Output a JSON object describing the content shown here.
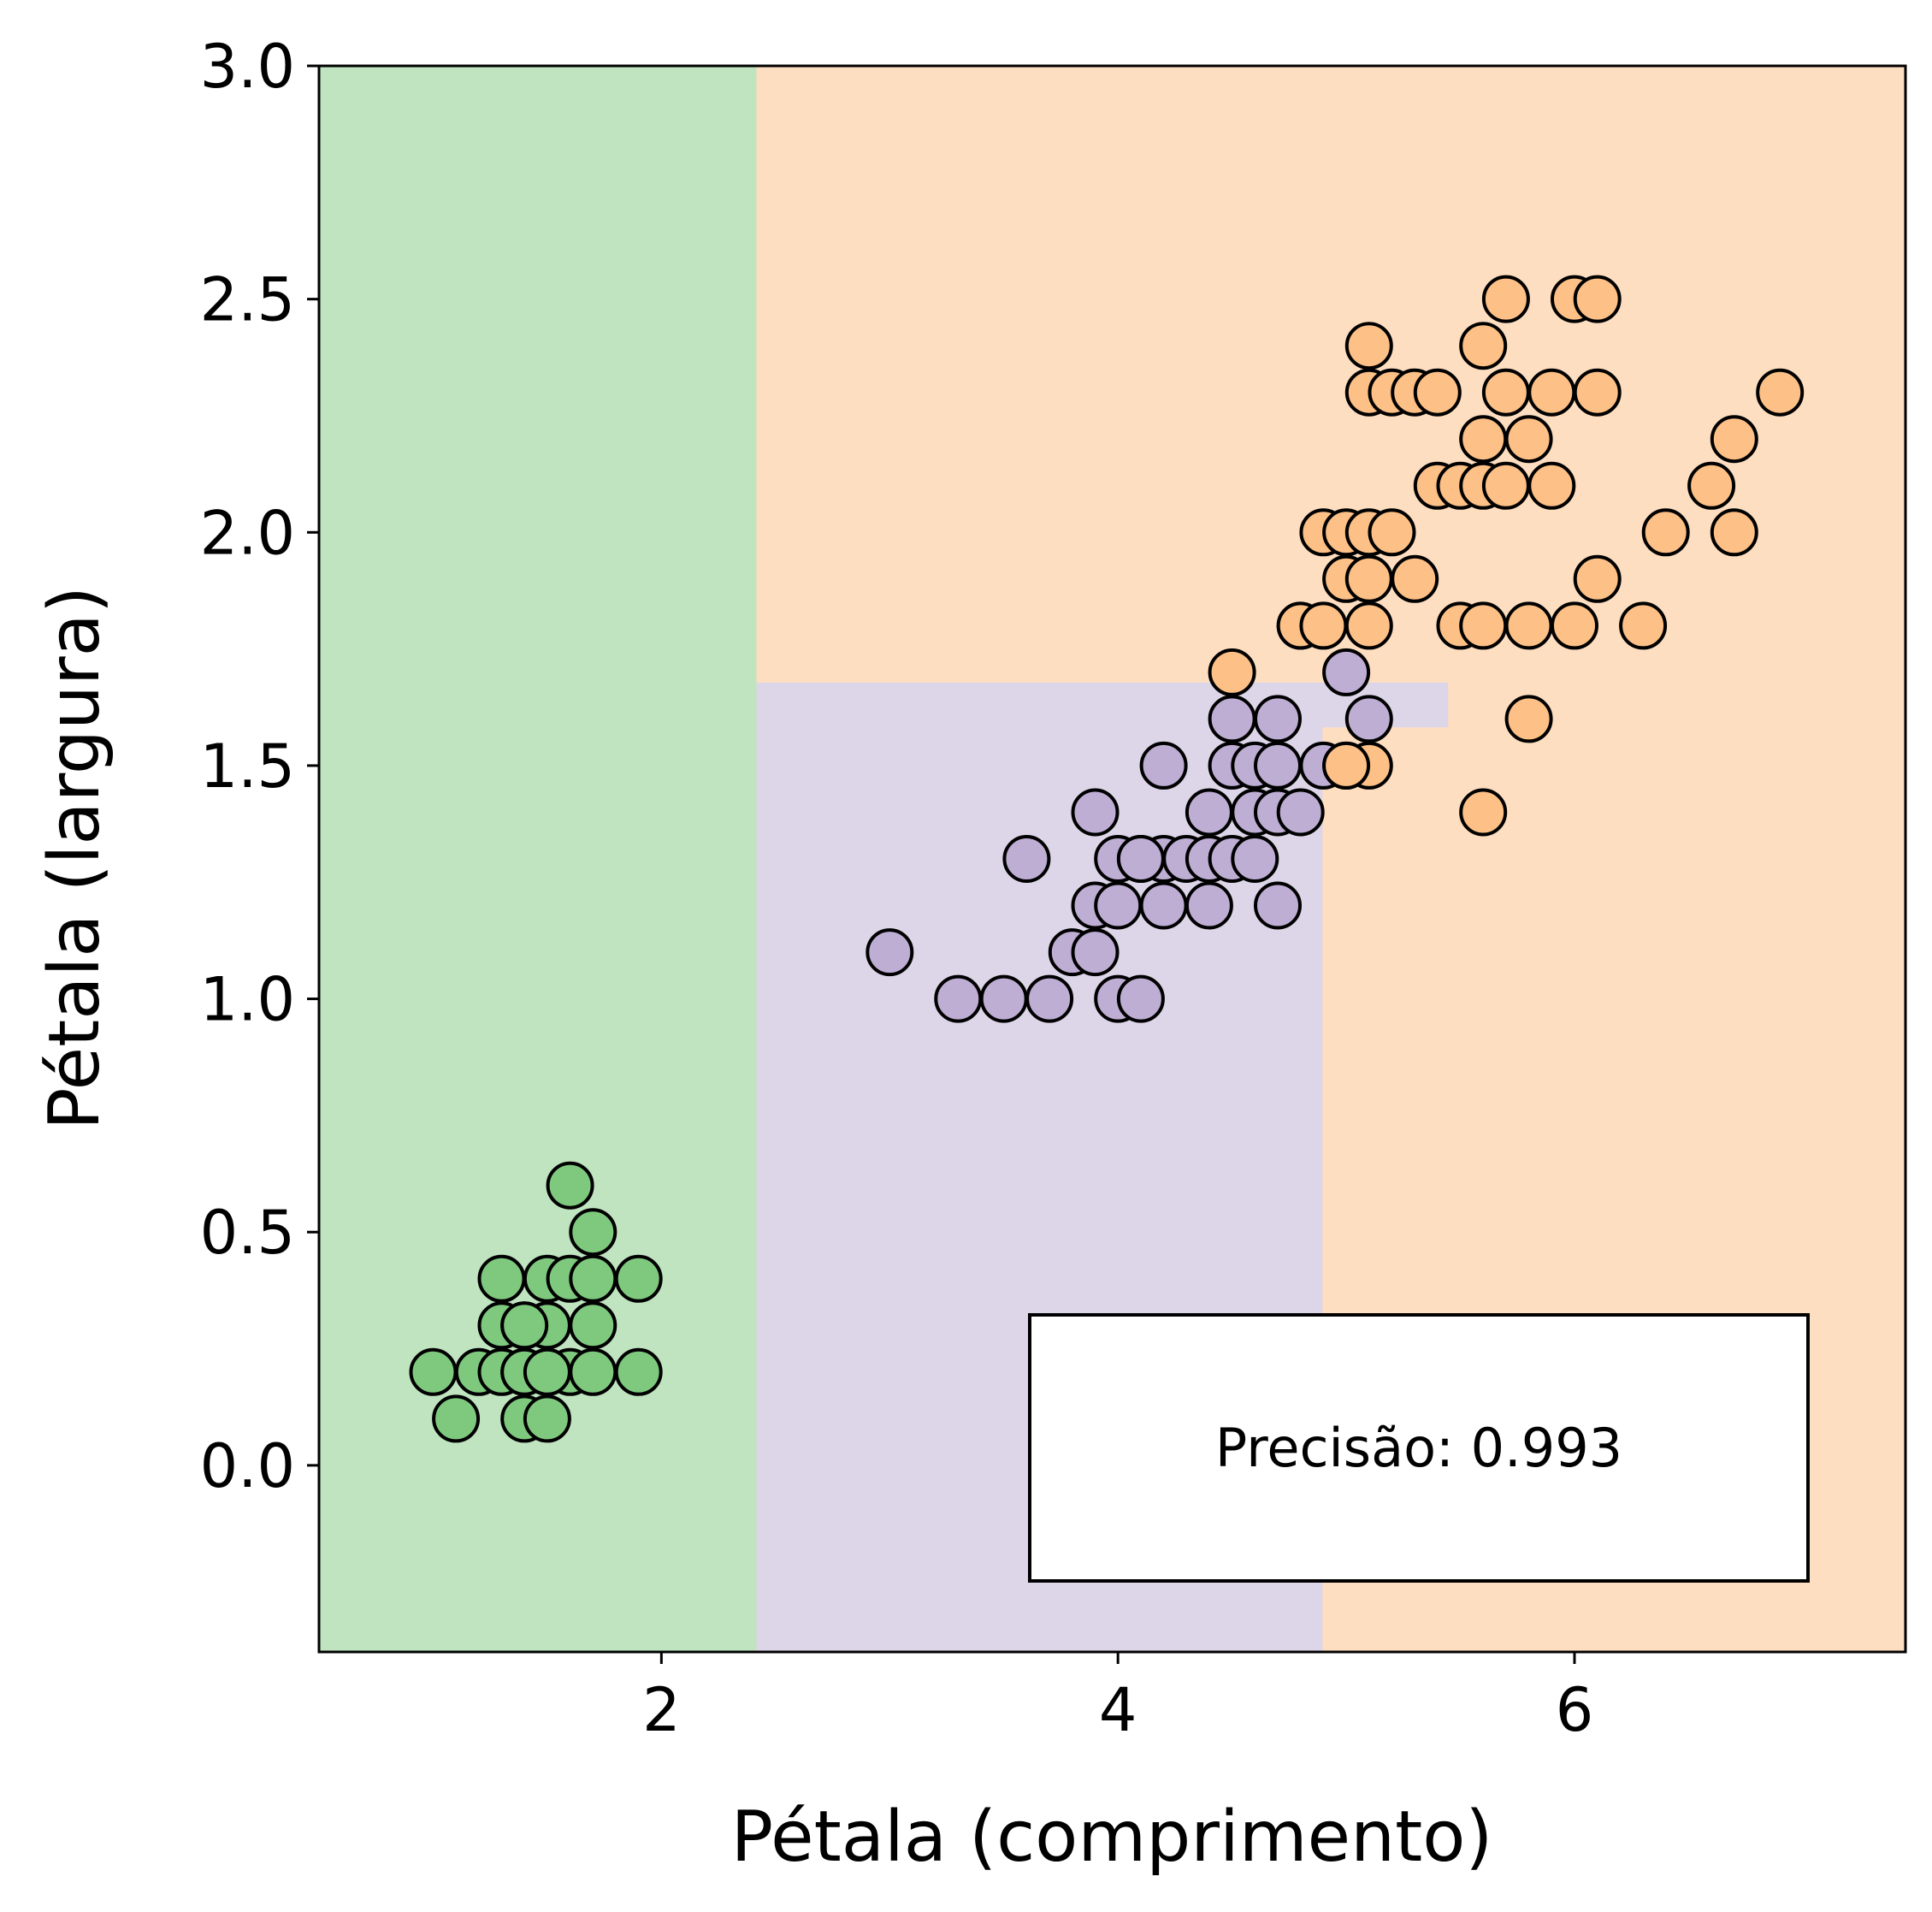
{
  "chart_data": {
    "type": "scatter",
    "xlabel": "Pétala (comprimento)",
    "ylabel": "Pétala (largura)",
    "xlim": [
      0.5,
      7.45
    ],
    "ylim": [
      -0.4,
      3.0
    ],
    "x_ticks": [
      {
        "value": 2,
        "label": "2"
      },
      {
        "value": 4,
        "label": "4"
      },
      {
        "value": 6,
        "label": "6"
      }
    ],
    "y_ticks": [
      {
        "value": 0.0,
        "label": "0.0"
      },
      {
        "value": 0.5,
        "label": "0.5"
      },
      {
        "value": 1.0,
        "label": "1.0"
      },
      {
        "value": 1.5,
        "label": "1.5"
      },
      {
        "value": 2.0,
        "label": "2.0"
      },
      {
        "value": 2.5,
        "label": "2.5"
      },
      {
        "value": 3.0,
        "label": "3.0"
      }
    ],
    "grid": false,
    "annotation": "Precisão: 0.993",
    "decision_regions": [
      {
        "class": "green",
        "color": "#c0e4c0",
        "polygons": [
          [
            [
              0.5,
              -0.4
            ],
            [
              2.42,
              -0.4
            ],
            [
              2.42,
              3.0
            ],
            [
              0.5,
              3.0
            ]
          ]
        ]
      },
      {
        "class": "purple",
        "color": "#ddd6e8",
        "polygons": [
          [
            [
              2.42,
              -0.4
            ],
            [
              4.9,
              -0.4
            ],
            [
              4.9,
              1.58
            ],
            [
              5.45,
              1.58
            ],
            [
              5.45,
              1.68
            ],
            [
              2.42,
              1.68
            ]
          ]
        ]
      },
      {
        "class": "orange",
        "color": "#fedec1",
        "polygons": [
          [
            [
              2.42,
              1.68
            ],
            [
              5.45,
              1.68
            ],
            [
              5.45,
              1.58
            ],
            [
              4.9,
              1.58
            ],
            [
              4.9,
              -0.4
            ],
            [
              7.45,
              -0.4
            ],
            [
              7.45,
              3.0
            ],
            [
              2.42,
              3.0
            ]
          ]
        ]
      }
    ],
    "series": [
      {
        "class": "green",
        "color": "#7fc97f",
        "points": [
          [
            1.0,
            0.2
          ],
          [
            1.1,
            0.1
          ],
          [
            1.2,
            0.2
          ],
          [
            1.3,
            0.2
          ],
          [
            1.3,
            0.3
          ],
          [
            1.3,
            0.4
          ],
          [
            1.4,
            0.1
          ],
          [
            1.4,
            0.2
          ],
          [
            1.4,
            0.3
          ],
          [
            1.5,
            0.1
          ],
          [
            1.5,
            0.2
          ],
          [
            1.5,
            0.3
          ],
          [
            1.5,
            0.4
          ],
          [
            1.6,
            0.2
          ],
          [
            1.6,
            0.4
          ],
          [
            1.6,
            0.6
          ],
          [
            1.7,
            0.2
          ],
          [
            1.7,
            0.3
          ],
          [
            1.7,
            0.4
          ],
          [
            1.7,
            0.5
          ],
          [
            1.9,
            0.2
          ],
          [
            1.9,
            0.4
          ],
          [
            1.4,
            0.2
          ],
          [
            1.4,
            0.3
          ],
          [
            1.5,
            0.2
          ]
        ]
      },
      {
        "class": "purple",
        "color": "#beaed4",
        "points": [
          [
            3.0,
            1.1
          ],
          [
            3.3,
            1.0
          ],
          [
            3.5,
            1.0
          ],
          [
            3.6,
            1.3
          ],
          [
            3.7,
            1.0
          ],
          [
            3.8,
            1.1
          ],
          [
            3.9,
            1.1
          ],
          [
            3.9,
            1.2
          ],
          [
            3.9,
            1.4
          ],
          [
            4.0,
            1.0
          ],
          [
            4.0,
            1.2
          ],
          [
            4.0,
            1.3
          ],
          [
            4.1,
            1.0
          ],
          [
            4.1,
            1.3
          ],
          [
            4.2,
            1.2
          ],
          [
            4.2,
            1.3
          ],
          [
            4.2,
            1.5
          ],
          [
            4.3,
            1.3
          ],
          [
            4.4,
            1.2
          ],
          [
            4.4,
            1.3
          ],
          [
            4.4,
            1.4
          ],
          [
            4.5,
            1.3
          ],
          [
            4.5,
            1.5
          ],
          [
            4.5,
            1.6
          ],
          [
            4.6,
            1.3
          ],
          [
            4.6,
            1.4
          ],
          [
            4.6,
            1.5
          ],
          [
            4.7,
            1.2
          ],
          [
            4.7,
            1.4
          ],
          [
            4.7,
            1.5
          ],
          [
            4.7,
            1.6
          ],
          [
            4.8,
            1.4
          ],
          [
            4.8,
            1.8
          ],
          [
            4.9,
            1.5
          ],
          [
            5.0,
            1.7
          ],
          [
            5.1,
            1.6
          ],
          [
            4.1,
            1.3
          ]
        ]
      },
      {
        "class": "orange",
        "color": "#fdc086",
        "points": [
          [
            4.5,
            1.7
          ],
          [
            4.8,
            1.8
          ],
          [
            4.9,
            1.8
          ],
          [
            4.9,
            2.0
          ],
          [
            5.0,
            1.5
          ],
          [
            5.0,
            1.9
          ],
          [
            5.0,
            2.0
          ],
          [
            5.1,
            1.5
          ],
          [
            5.1,
            1.8
          ],
          [
            5.1,
            1.9
          ],
          [
            5.1,
            2.0
          ],
          [
            5.1,
            2.3
          ],
          [
            5.1,
            2.4
          ],
          [
            5.2,
            2.0
          ],
          [
            5.2,
            2.3
          ],
          [
            5.3,
            1.9
          ],
          [
            5.3,
            2.3
          ],
          [
            5.4,
            2.1
          ],
          [
            5.4,
            2.3
          ],
          [
            5.5,
            1.8
          ],
          [
            5.5,
            2.1
          ],
          [
            5.6,
            1.4
          ],
          [
            5.6,
            1.8
          ],
          [
            5.6,
            2.1
          ],
          [
            5.6,
            2.2
          ],
          [
            5.6,
            2.4
          ],
          [
            5.7,
            2.1
          ],
          [
            5.7,
            2.3
          ],
          [
            5.7,
            2.5
          ],
          [
            5.8,
            1.6
          ],
          [
            5.8,
            1.8
          ],
          [
            5.8,
            2.2
          ],
          [
            5.9,
            2.1
          ],
          [
            5.9,
            2.3
          ],
          [
            6.0,
            1.8
          ],
          [
            6.0,
            2.5
          ],
          [
            6.1,
            1.9
          ],
          [
            6.1,
            2.3
          ],
          [
            6.1,
            2.5
          ],
          [
            6.3,
            1.8
          ],
          [
            6.4,
            2.0
          ],
          [
            6.6,
            2.1
          ],
          [
            6.7,
            2.0
          ],
          [
            6.7,
            2.2
          ],
          [
            6.9,
            2.3
          ],
          [
            5.0,
            1.5
          ]
        ]
      }
    ]
  }
}
